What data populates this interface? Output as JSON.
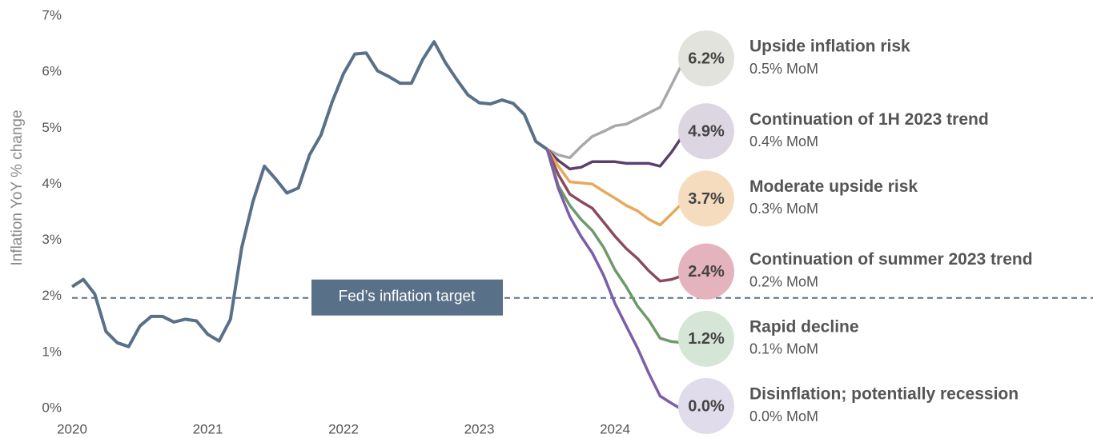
{
  "chart_data": {
    "type": "line",
    "y_label": "Inflation YoY % change",
    "xlim": [
      2020,
      2025
    ],
    "xticks": [
      2020,
      2021,
      2022,
      2023,
      2024
    ],
    "ylim": [
      0,
      7
    ],
    "yticks": [
      {
        "value": 0,
        "label": "0%"
      },
      {
        "value": 1,
        "label": "1%"
      },
      {
        "value": 2,
        "label": "2%"
      },
      {
        "value": 3,
        "label": "3%"
      },
      {
        "value": 4,
        "label": "4%"
      },
      {
        "value": 5,
        "label": "5%"
      },
      {
        "value": 6,
        "label": "6%"
      },
      {
        "value": 7,
        "label": "7%"
      }
    ],
    "target": {
      "value": 2,
      "label": "Fed’s inflation target",
      "color": "#587088"
    },
    "history": {
      "color": "#587088",
      "x": [
        2020,
        2020.083,
        2020.167,
        2020.25,
        2020.333,
        2020.417,
        2020.5,
        2020.583,
        2020.667,
        2020.75,
        2020.833,
        2020.917,
        2021,
        2021.083,
        2021.167,
        2021.25,
        2021.333,
        2021.417,
        2021.5,
        2021.583,
        2021.667,
        2021.75,
        2021.833,
        2021.917,
        2022,
        2022.083,
        2022.167,
        2022.25,
        2022.333,
        2022.417,
        2022.5,
        2022.583,
        2022.667,
        2022.75,
        2022.833,
        2022.917,
        2023,
        2023.083,
        2023.167,
        2023.25,
        2023.333,
        2023.417,
        2023.5
      ],
      "values": [
        2.2,
        2.33,
        2.07,
        1.4,
        1.2,
        1.13,
        1.5,
        1.67,
        1.67,
        1.57,
        1.62,
        1.59,
        1.35,
        1.23,
        1.62,
        2.9,
        3.72,
        4.35,
        4.12,
        3.87,
        3.96,
        4.55,
        4.9,
        5.5,
        6.0,
        6.35,
        6.37,
        6.05,
        5.95,
        5.83,
        5.83,
        6.25,
        6.57,
        6.2,
        5.9,
        5.62,
        5.48,
        5.46,
        5.53,
        5.47,
        5.27,
        4.79,
        4.65
      ]
    },
    "scenario_x": [
      2023.5,
      2023.583,
      2023.667,
      2023.75,
      2023.833,
      2023.917,
      2024,
      2024.083,
      2024.167,
      2024.25,
      2024.333,
      2024.417,
      2024.5
    ],
    "series": [
      {
        "name": "Upside inflation risk",
        "note": "0.5% MoM",
        "end_label": "6.2%",
        "color": "#a9a9a9",
        "bubble": "#e3e3dd",
        "values": [
          4.65,
          4.55,
          4.5,
          4.7,
          4.88,
          4.97,
          5.07,
          5.1,
          5.2,
          5.3,
          5.4,
          5.8,
          6.2
        ]
      },
      {
        "name": "Continuation of 1H 2023 trend",
        "note": "0.4% MoM",
        "end_label": "4.9%",
        "color": "#5b3f6b",
        "bubble": "#dcd6e3",
        "values": [
          4.65,
          4.45,
          4.3,
          4.33,
          4.43,
          4.43,
          4.43,
          4.4,
          4.4,
          4.4,
          4.35,
          4.6,
          4.9
        ]
      },
      {
        "name": "Moderate upside risk",
        "note": "0.3% MoM",
        "end_label": "3.7%",
        "color": "#e8a85a",
        "bubble": "#f5dcbf",
        "values": [
          4.65,
          4.35,
          4.07,
          4.05,
          4.03,
          3.9,
          3.78,
          3.65,
          3.55,
          3.4,
          3.3,
          3.5,
          3.7
        ]
      },
      {
        "name": "Continuation of summer 2023 trend",
        "note": "0.2% MoM",
        "end_label": "2.4%",
        "color": "#8b4a5e",
        "bubble": "#e4b3bd",
        "values": [
          4.65,
          4.2,
          3.85,
          3.72,
          3.6,
          3.35,
          3.1,
          2.88,
          2.7,
          2.48,
          2.3,
          2.33,
          2.4
        ]
      },
      {
        "name": "Rapid decline",
        "note": "0.1% MoM",
        "end_label": "1.2%",
        "color": "#6e9a6a",
        "bubble": "#d6e6d6",
        "values": [
          4.65,
          4.0,
          3.65,
          3.4,
          3.2,
          2.9,
          2.5,
          2.2,
          1.85,
          1.6,
          1.28,
          1.22,
          1.2
        ]
      },
      {
        "name": "Disinflation; potentially recession",
        "note": "0.0% MoM",
        "end_label": "0.0%",
        "color": "#7b5ea8",
        "bubble": "#e1dceb",
        "values": [
          4.65,
          3.95,
          3.45,
          3.1,
          2.8,
          2.4,
          1.9,
          1.5,
          1.1,
          0.65,
          0.25,
          0.12,
          0.0
        ]
      }
    ]
  }
}
